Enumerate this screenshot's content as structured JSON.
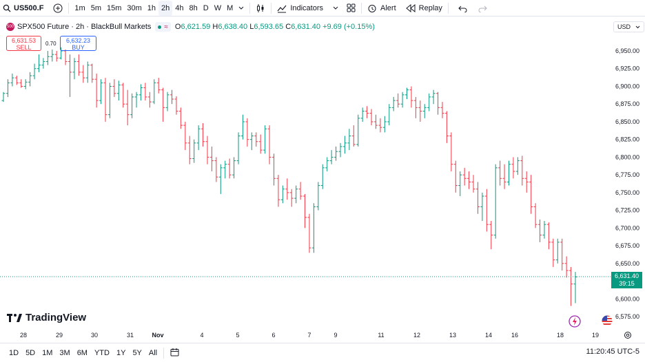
{
  "toolbar": {
    "symbol": "US500.F",
    "intervals": [
      "1m",
      "5m",
      "15m",
      "30m",
      "1h",
      "2h",
      "4h",
      "8h",
      "D",
      "W",
      "M"
    ],
    "active_interval": "2h",
    "indicators_label": "Indicators",
    "alert_label": "Alert",
    "replay_label": "Replay"
  },
  "legend": {
    "title": "SPX500 Future · 2h · BlackBull Markets",
    "logo_text": "500",
    "wave_glyph": "≈",
    "open_key": "O",
    "open": "6,621.59",
    "high_key": "H",
    "high": "6,638.40",
    "low_key": "L",
    "low": "6,593.65",
    "close_key": "C",
    "close": "6,631.40",
    "change": "+9.69 (+0.15%)"
  },
  "trade": {
    "sell_price": "6,631.53",
    "sell_label": "SELL",
    "spread": "0.70",
    "buy_price": "6,632.23",
    "buy_label": "BUY"
  },
  "currency": "USD",
  "price_axis": {
    "ticks": [
      "6,950.00",
      "6,925.00",
      "6,900.00",
      "6,875.00",
      "6,850.00",
      "6,825.00",
      "6,800.00",
      "6,775.00",
      "6,750.00",
      "6,725.00",
      "6,700.00",
      "6,675.00",
      "6,650.00",
      "6,625.00",
      "6,600.00",
      "6,575.00"
    ],
    "tick_values": [
      6950,
      6925,
      6900,
      6875,
      6850,
      6825,
      6800,
      6775,
      6750,
      6725,
      6700,
      6675,
      6650,
      6625,
      6600,
      6575
    ]
  },
  "last_price": {
    "price": "6,631.40",
    "value": 6631.4,
    "countdown": "39:15"
  },
  "time_axis": {
    "labels": [
      "28",
      "29",
      "30",
      "31",
      "Nov",
      "4",
      "5",
      "6",
      "7",
      "9",
      "11",
      "12",
      "13",
      "14",
      "16",
      "18",
      "19"
    ]
  },
  "branding": "TradingView",
  "ranges": [
    "1D",
    "5D",
    "1M",
    "3M",
    "6M",
    "YTD",
    "1Y",
    "5Y",
    "All"
  ],
  "clock": "11:20:45 UTC-5",
  "colors": {
    "up": "#089981",
    "down": "#f23645",
    "accent": "#2962ff"
  },
  "chart_data": {
    "type": "candlestick",
    "ylim": [
      6575,
      6960
    ],
    "candles": [
      [
        6880,
        6892,
        6878,
        6890
      ],
      [
        6890,
        6910,
        6885,
        6905
      ],
      [
        6905,
        6918,
        6900,
        6912
      ],
      [
        6912,
        6915,
        6902,
        6905
      ],
      [
        6905,
        6910,
        6898,
        6900
      ],
      [
        6900,
        6910,
        6896,
        6906
      ],
      [
        6906,
        6920,
        6900,
        6915
      ],
      [
        6915,
        6932,
        6910,
        6925
      ],
      [
        6925,
        6945,
        6920,
        6930
      ],
      [
        6930,
        6940,
        6925,
        6935
      ],
      [
        6935,
        6950,
        6930,
        6942
      ],
      [
        6942,
        6952,
        6935,
        6945
      ],
      [
        6945,
        6950,
        6935,
        6940
      ],
      [
        6940,
        6955,
        6938,
        6950
      ],
      [
        6950,
        6952,
        6930,
        6935
      ],
      [
        6935,
        6945,
        6885,
        6920
      ],
      [
        6920,
        6940,
        6910,
        6935
      ],
      [
        6935,
        6945,
        6915,
        6920
      ],
      [
        6920,
        6930,
        6905,
        6912
      ],
      [
        6912,
        6935,
        6905,
        6930
      ],
      [
        6930,
        6932,
        6905,
        6910
      ],
      [
        6910,
        6918,
        6870,
        6880
      ],
      [
        6880,
        6910,
        6875,
        6905
      ],
      [
        6905,
        6912,
        6850,
        6860
      ],
      [
        6860,
        6905,
        6855,
        6900
      ],
      [
        6900,
        6910,
        6885,
        6890
      ],
      [
        6890,
        6908,
        6880,
        6902
      ],
      [
        6902,
        6905,
        6870,
        6875
      ],
      [
        6875,
        6895,
        6845,
        6860
      ],
      [
        6860,
        6890,
        6855,
        6885
      ],
      [
        6885,
        6892,
        6870,
        6888
      ],
      [
        6888,
        6903,
        6880,
        6898
      ],
      [
        6898,
        6905,
        6880,
        6885
      ],
      [
        6885,
        6892,
        6870,
        6878
      ],
      [
        6878,
        6910,
        6875,
        6905
      ],
      [
        6905,
        6912,
        6890,
        6895
      ],
      [
        6895,
        6898,
        6850,
        6870
      ],
      [
        6870,
        6892,
        6865,
        6888
      ],
      [
        6888,
        6895,
        6875,
        6882
      ],
      [
        6882,
        6886,
        6860,
        6865
      ],
      [
        6865,
        6870,
        6840,
        6845
      ],
      [
        6845,
        6850,
        6810,
        6820
      ],
      [
        6820,
        6830,
        6790,
        6798
      ],
      [
        6798,
        6825,
        6792,
        6820
      ],
      [
        6820,
        6845,
        6810,
        6840
      ],
      [
        6840,
        6848,
        6815,
        6822
      ],
      [
        6822,
        6830,
        6790,
        6800
      ],
      [
        6800,
        6815,
        6780,
        6795
      ],
      [
        6795,
        6800,
        6765,
        6772
      ],
      [
        6772,
        6790,
        6748,
        6785
      ],
      [
        6785,
        6795,
        6770,
        6790
      ],
      [
        6790,
        6798,
        6770,
        6775
      ],
      [
        6775,
        6800,
        6770,
        6795
      ],
      [
        6795,
        6835,
        6790,
        6830
      ],
      [
        6830,
        6860,
        6825,
        6850
      ],
      [
        6850,
        6855,
        6815,
        6825
      ],
      [
        6825,
        6835,
        6810,
        6830
      ],
      [
        6830,
        6835,
        6815,
        6822
      ],
      [
        6822,
        6832,
        6805,
        6810
      ],
      [
        6810,
        6845,
        6805,
        6840
      ],
      [
        6840,
        6845,
        6790,
        6800
      ],
      [
        6800,
        6805,
        6760,
        6770
      ],
      [
        6770,
        6775,
        6730,
        6740
      ],
      [
        6740,
        6760,
        6735,
        6755
      ],
      [
        6755,
        6770,
        6740,
        6750
      ],
      [
        6750,
        6755,
        6730,
        6742
      ],
      [
        6742,
        6760,
        6735,
        6755
      ],
      [
        6755,
        6765,
        6740,
        6745
      ],
      [
        6745,
        6748,
        6700,
        6715
      ],
      [
        6715,
        6720,
        6665,
        6672
      ],
      [
        6672,
        6735,
        6665,
        6730
      ],
      [
        6730,
        6765,
        6725,
        6760
      ],
      [
        6760,
        6790,
        6755,
        6785
      ],
      [
        6785,
        6800,
        6780,
        6795
      ],
      [
        6795,
        6810,
        6790,
        6800
      ],
      [
        6800,
        6815,
        6795,
        6808
      ],
      [
        6808,
        6820,
        6800,
        6815
      ],
      [
        6815,
        6830,
        6805,
        6820
      ],
      [
        6820,
        6840,
        6810,
        6830
      ],
      [
        6830,
        6845,
        6815,
        6818
      ],
      [
        6818,
        6860,
        6815,
        6855
      ],
      [
        6855,
        6870,
        6850,
        6865
      ],
      [
        6865,
        6872,
        6855,
        6862
      ],
      [
        6862,
        6868,
        6845,
        6850
      ],
      [
        6850,
        6860,
        6840,
        6845
      ],
      [
        6845,
        6855,
        6835,
        6842
      ],
      [
        6842,
        6858,
        6835,
        6850
      ],
      [
        6850,
        6875,
        6845,
        6870
      ],
      [
        6870,
        6885,
        6865,
        6880
      ],
      [
        6880,
        6890,
        6870,
        6875
      ],
      [
        6875,
        6892,
        6870,
        6888
      ],
      [
        6888,
        6898,
        6882,
        6895
      ],
      [
        6895,
        6900,
        6870,
        6880
      ],
      [
        6880,
        6885,
        6855,
        6870
      ],
      [
        6870,
        6880,
        6850,
        6865
      ],
      [
        6865,
        6875,
        6855,
        6870
      ],
      [
        6870,
        6890,
        6865,
        6885
      ],
      [
        6885,
        6895,
        6875,
        6890
      ],
      [
        6890,
        6892,
        6860,
        6870
      ],
      [
        6870,
        6878,
        6855,
        6862
      ],
      [
        6862,
        6865,
        6820,
        6830
      ],
      [
        6830,
        6835,
        6780,
        6790
      ],
      [
        6790,
        6795,
        6750,
        6760
      ],
      [
        6760,
        6780,
        6745,
        6775
      ],
      [
        6775,
        6785,
        6760,
        6770
      ],
      [
        6770,
        6780,
        6755,
        6765
      ],
      [
        6765,
        6775,
        6750,
        6755
      ],
      [
        6755,
        6765,
        6720,
        6730
      ],
      [
        6730,
        6750,
        6710,
        6745
      ],
      [
        6745,
        6755,
        6695,
        6705
      ],
      [
        6705,
        6710,
        6670,
        6690
      ],
      [
        6690,
        6790,
        6685,
        6785
      ],
      [
        6785,
        6795,
        6760,
        6770
      ],
      [
        6770,
        6790,
        6755,
        6765
      ],
      [
        6765,
        6795,
        6760,
        6790
      ],
      [
        6790,
        6800,
        6770,
        6780
      ],
      [
        6780,
        6800,
        6775,
        6795
      ],
      [
        6795,
        6802,
        6760,
        6770
      ],
      [
        6770,
        6780,
        6750,
        6765
      ],
      [
        6765,
        6775,
        6720,
        6730
      ],
      [
        6730,
        6735,
        6700,
        6705
      ],
      [
        6705,
        6712,
        6680,
        6690
      ],
      [
        6690,
        6710,
        6685,
        6705
      ],
      [
        6705,
        6708,
        6670,
        6680
      ],
      [
        6680,
        6685,
        6645,
        6655
      ],
      [
        6655,
        6685,
        6650,
        6680
      ],
      [
        6680,
        6685,
        6640,
        6650
      ],
      [
        6650,
        6660,
        6630,
        6640
      ],
      [
        6640,
        6645,
        6590,
        6621
      ],
      [
        6621,
        6638,
        6594,
        6631
      ]
    ]
  }
}
